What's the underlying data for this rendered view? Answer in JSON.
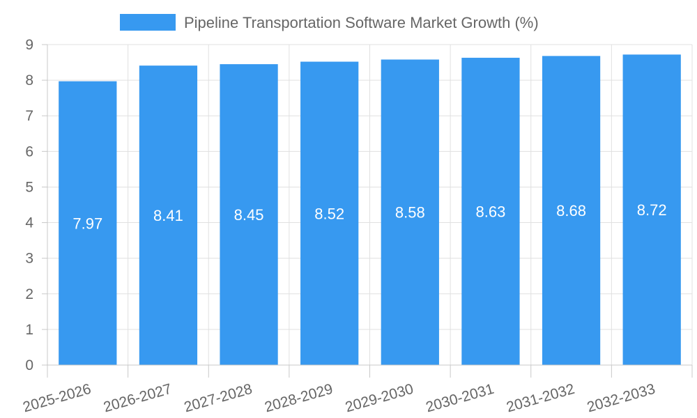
{
  "chart_data": {
    "type": "bar",
    "title": "",
    "xlabel": "",
    "ylabel": "",
    "legend": {
      "position": "top",
      "entries": [
        "Pipeline Transportation Software Market Growth (%)"
      ]
    },
    "categories": [
      "2025-2026",
      "2026-2027",
      "2027-2028",
      "2028-2029",
      "2029-2030",
      "2030-2031",
      "2031-2032",
      "2032-2033"
    ],
    "series": [
      {
        "name": "Pipeline Transportation Software Market Growth (%)",
        "values": [
          7.97,
          8.41,
          8.45,
          8.52,
          8.58,
          8.63,
          8.68,
          8.72
        ],
        "color": "#3799f0"
      }
    ],
    "ylim": [
      0,
      9
    ],
    "yticks": [
      0,
      1,
      2,
      3,
      4,
      5,
      6,
      7,
      8,
      9
    ],
    "grid": true,
    "data_labels": true,
    "colors": {
      "bar": "#3799f0",
      "grid": "#e0e0e0",
      "axis": "#c8c8c8",
      "text": "#666666",
      "label": "#ffffff"
    }
  }
}
